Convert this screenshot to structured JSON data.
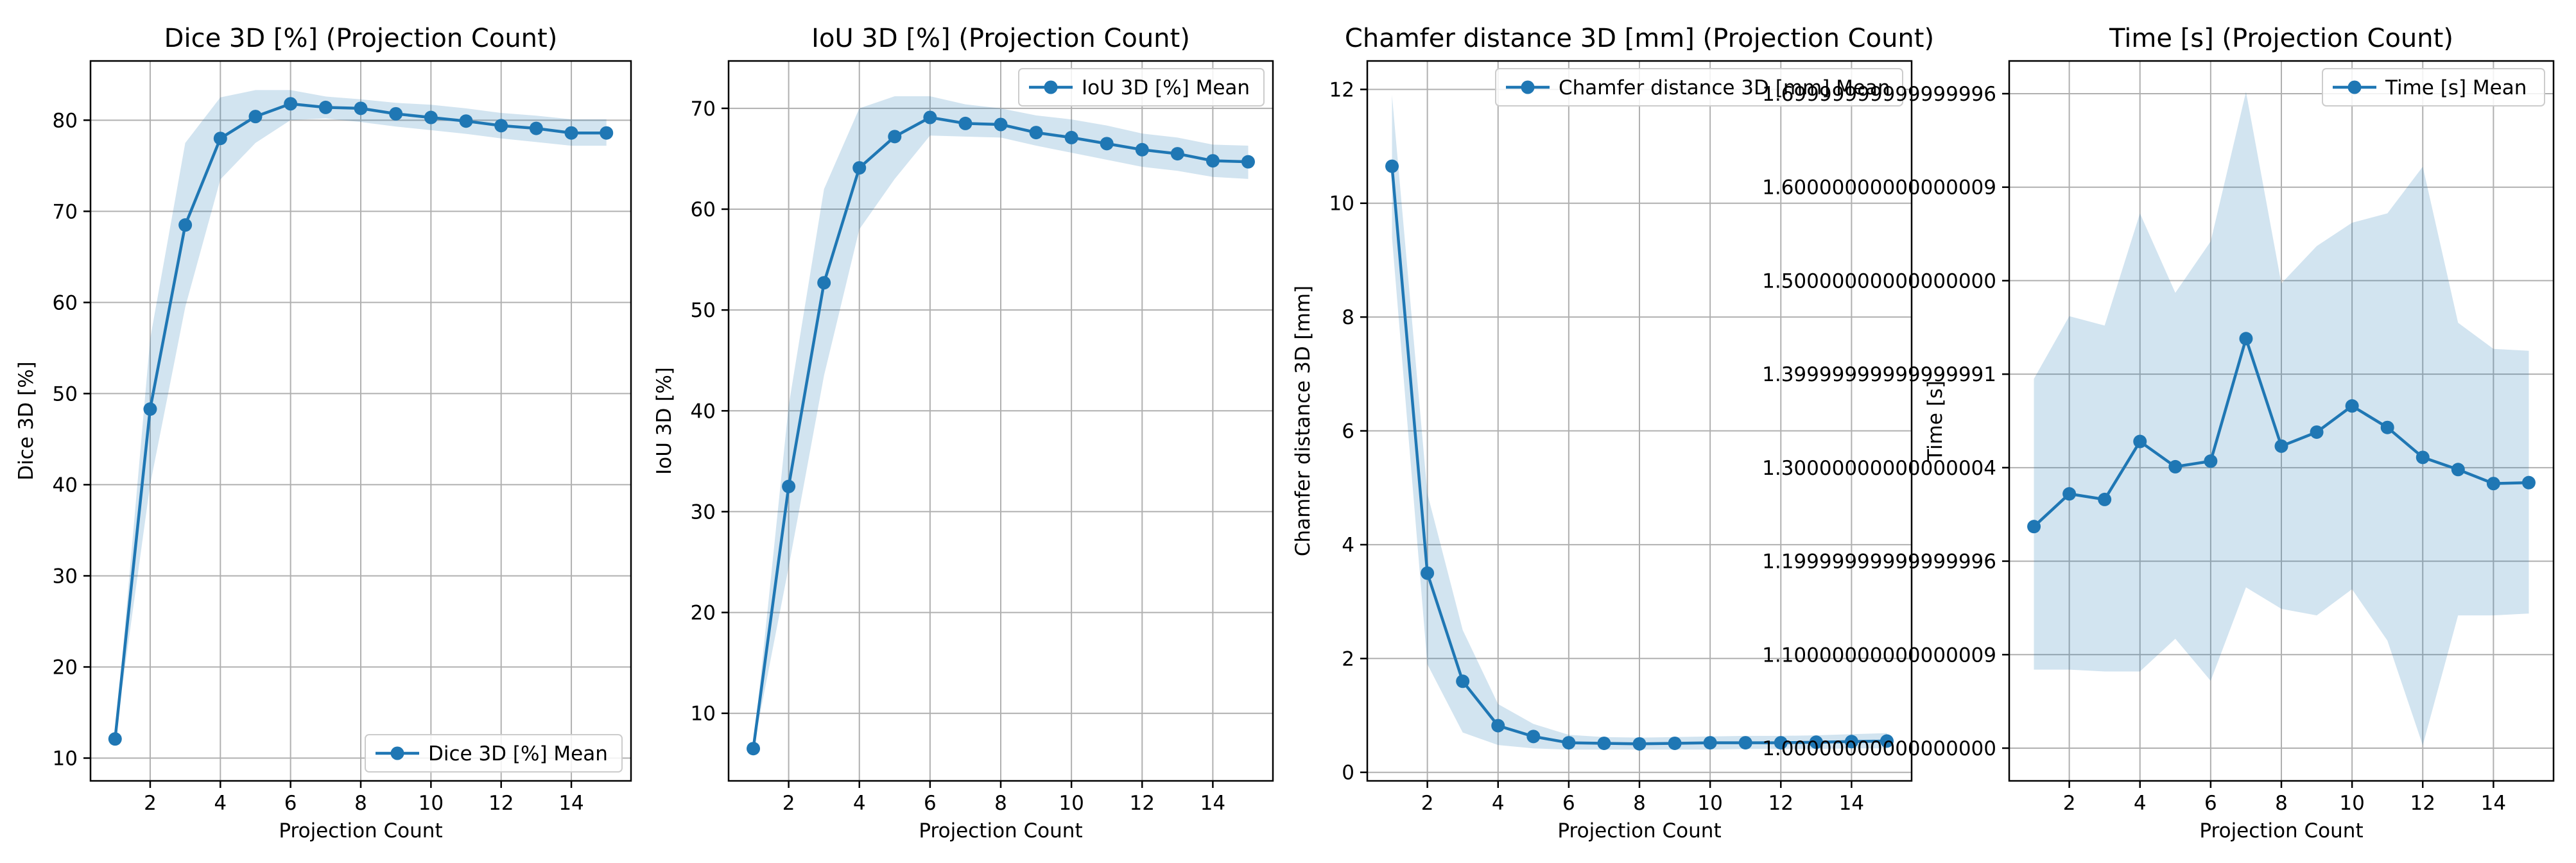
{
  "chart_data": [
    {
      "type": "line",
      "title": "Dice 3D [%] (Projection Count)",
      "xlabel": "Projection Count",
      "ylabel": "Dice 3D [%]",
      "xlim": [
        0.3,
        15.7
      ],
      "ylim": [
        7.5,
        86.5
      ],
      "xticks": [
        2,
        4,
        6,
        8,
        10,
        12,
        14
      ],
      "yticks": [
        10,
        20,
        30,
        40,
        50,
        60,
        70,
        80
      ],
      "grid": true,
      "legend": {
        "label": "Dice 3D [%] Mean",
        "position": "lower-right"
      },
      "series": [
        {
          "name": "Dice 3D [%] Mean",
          "x": [
            1,
            2,
            3,
            4,
            5,
            6,
            7,
            8,
            9,
            10,
            11,
            12,
            13,
            14,
            15
          ],
          "mean": [
            12.1,
            48.3,
            68.5,
            78.0,
            80.4,
            81.8,
            81.4,
            81.3,
            80.7,
            80.3,
            79.9,
            79.4,
            79.1,
            78.6,
            78.6
          ],
          "lower": [
            12.1,
            40.0,
            59.5,
            73.5,
            77.5,
            80.0,
            80.2,
            79.8,
            79.3,
            78.9,
            78.5,
            78.0,
            77.6,
            77.2,
            77.2
          ],
          "upper": [
            12.1,
            56.0,
            77.5,
            82.5,
            83.3,
            83.3,
            82.6,
            82.3,
            81.9,
            81.7,
            81.3,
            80.8,
            80.5,
            80.1,
            80.1
          ]
        }
      ]
    },
    {
      "type": "line",
      "title": "IoU 3D [%] (Projection Count)",
      "xlabel": "Projection Count",
      "ylabel": "IoU 3D [%]",
      "xlim": [
        0.3,
        15.7
      ],
      "ylim": [
        3.3,
        74.7
      ],
      "xticks": [
        2,
        4,
        6,
        8,
        10,
        12,
        14
      ],
      "yticks": [
        10,
        20,
        30,
        40,
        50,
        60,
        70
      ],
      "grid": true,
      "legend": {
        "label": "IoU 3D [%] Mean",
        "position": "upper-right"
      },
      "series": [
        {
          "name": "IoU 3D [%] Mean",
          "x": [
            1,
            2,
            3,
            4,
            5,
            6,
            7,
            8,
            9,
            10,
            11,
            12,
            13,
            14,
            15
          ],
          "mean": [
            6.5,
            32.5,
            52.7,
            64.1,
            67.2,
            69.1,
            68.5,
            68.4,
            67.6,
            67.1,
            66.5,
            65.9,
            65.5,
            64.8,
            64.7
          ],
          "lower": [
            6.5,
            24.5,
            43.5,
            58.0,
            63.0,
            67.3,
            67.2,
            67.1,
            66.3,
            65.6,
            64.9,
            64.2,
            63.8,
            63.2,
            63.0
          ],
          "upper": [
            6.5,
            40.5,
            62.0,
            70.0,
            71.2,
            71.2,
            70.4,
            70.0,
            69.3,
            68.9,
            68.3,
            67.5,
            67.1,
            66.4,
            66.3
          ]
        }
      ]
    },
    {
      "type": "line",
      "title": "Chamfer distance 3D [mm] (Projection Count)",
      "xlabel": "Projection Count",
      "ylabel": "Chamfer distance 3D [mm]",
      "xlim": [
        0.3,
        15.7
      ],
      "ylim": [
        -0.15,
        12.5
      ],
      "xticks": [
        2,
        4,
        6,
        8,
        10,
        12,
        14
      ],
      "yticks": [
        0,
        2,
        4,
        6,
        8,
        10,
        12
      ],
      "grid": true,
      "legend": {
        "label": "Chamfer distance 3D [mm] Mean",
        "position": "upper-right"
      },
      "series": [
        {
          "name": "Chamfer distance 3D [mm] Mean",
          "x": [
            1,
            2,
            3,
            4,
            5,
            6,
            7,
            8,
            9,
            10,
            11,
            12,
            13,
            14,
            15
          ],
          "mean": [
            10.65,
            3.5,
            1.6,
            0.82,
            0.63,
            0.52,
            0.51,
            0.5,
            0.51,
            0.52,
            0.52,
            0.52,
            0.53,
            0.54,
            0.55
          ],
          "lower": [
            9.4,
            1.9,
            0.7,
            0.48,
            0.42,
            0.4,
            0.4,
            0.4,
            0.4,
            0.4,
            0.41,
            0.41,
            0.41,
            0.42,
            0.42
          ],
          "upper": [
            11.9,
            4.9,
            2.5,
            1.2,
            0.85,
            0.66,
            0.62,
            0.61,
            0.62,
            0.63,
            0.64,
            0.64,
            0.65,
            0.67,
            0.69
          ]
        }
      ]
    },
    {
      "type": "line",
      "title": "Time [s] (Projection Count)",
      "xlabel": "Projection Count",
      "ylabel": "Time [s]",
      "xlim": [
        0.3,
        15.7
      ],
      "ylim": [
        0.965,
        1.735
      ],
      "xticks": [
        2,
        4,
        6,
        8,
        10,
        12,
        14
      ],
      "yticks": [
        1.0,
        1.1,
        1.2,
        1.3,
        1.4,
        1.5,
        1.6,
        1.7
      ],
      "grid": true,
      "legend": {
        "label": "Time [s] Mean",
        "position": "upper-right"
      },
      "series": [
        {
          "name": "Time [s] Mean",
          "x": [
            1,
            2,
            3,
            4,
            5,
            6,
            7,
            8,
            9,
            10,
            11,
            12,
            13,
            14,
            15
          ],
          "mean": [
            1.237,
            1.272,
            1.266,
            1.328,
            1.301,
            1.307,
            1.438,
            1.323,
            1.338,
            1.366,
            1.343,
            1.311,
            1.298,
            1.283,
            1.284
          ],
          "lower": [
            1.084,
            1.084,
            1.082,
            1.082,
            1.117,
            1.072,
            1.172,
            1.149,
            1.142,
            1.17,
            1.115,
            1.003,
            1.142,
            1.142,
            1.144
          ],
          "upper": [
            1.395,
            1.462,
            1.452,
            1.572,
            1.487,
            1.542,
            1.702,
            1.497,
            1.537,
            1.562,
            1.572,
            1.622,
            1.455,
            1.427,
            1.425
          ]
        }
      ]
    }
  ],
  "colors": {
    "line": "#1f77b4",
    "band": "#1f77b4",
    "grid": "#b0b0b0",
    "axis": "#000000"
  }
}
